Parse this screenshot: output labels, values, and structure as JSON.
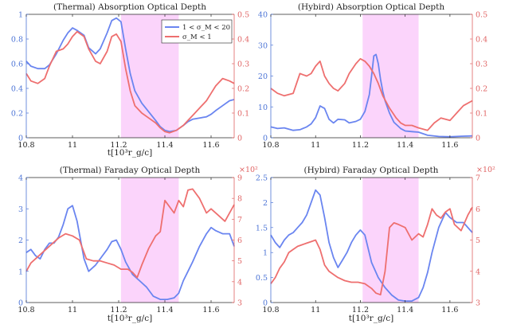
{
  "colors": {
    "left": "#4c74d6",
    "right": "#e06363",
    "band": "#fbd4fb",
    "blueLine": "#6a85f0",
    "redLine": "#ee6f6f"
  },
  "legend": {
    "series1": "1 < σ_M < 20",
    "series2": "σ_M < 1"
  },
  "chart_data": [
    {
      "type": "line",
      "title": "(Thermal) Absorption Optical Depth",
      "xlabel": "t[10³r_g/c]",
      "xlim": [
        10.8,
        11.7
      ],
      "xticks": [
        "10.8",
        "11",
        "11.2",
        "11.4",
        "11.6"
      ],
      "yleft": {
        "lim": [
          0,
          1
        ],
        "ticks": [
          "0",
          "0.2",
          "0.4",
          "0.6",
          "0.8",
          "1"
        ]
      },
      "yright": {
        "lim": [
          0,
          0.5
        ],
        "ticks": [
          "0",
          "0.1",
          "0.2",
          "0.3",
          "0.4",
          "0.5"
        ],
        "multiplier": ""
      },
      "shaded_x": [
        11.21,
        11.46
      ],
      "series": [
        {
          "name": "1 < σ_M < 20",
          "axis": "left",
          "x": [
            10.8,
            10.82,
            10.85,
            10.88,
            10.9,
            10.93,
            10.96,
            10.98,
            11,
            11.02,
            11.05,
            11.07,
            11.1,
            11.12,
            11.15,
            11.17,
            11.19,
            11.21,
            11.23,
            11.25,
            11.27,
            11.3,
            11.33,
            11.36,
            11.38,
            11.4,
            11.42,
            11.45,
            11.48,
            11.5,
            11.52,
            11.55,
            11.58,
            11.6,
            11.62,
            11.65,
            11.68,
            11.7
          ],
          "values": [
            0.62,
            0.58,
            0.56,
            0.56,
            0.59,
            0.68,
            0.79,
            0.85,
            0.89,
            0.87,
            0.83,
            0.73,
            0.68,
            0.72,
            0.85,
            0.95,
            0.97,
            0.94,
            0.72,
            0.52,
            0.38,
            0.28,
            0.21,
            0.14,
            0.09,
            0.06,
            0.05,
            0.06,
            0.1,
            0.13,
            0.15,
            0.16,
            0.17,
            0.19,
            0.22,
            0.26,
            0.3,
            0.31
          ]
        },
        {
          "name": "σ_M < 1",
          "axis": "right",
          "x": [
            10.8,
            10.82,
            10.85,
            10.88,
            10.9,
            10.93,
            10.96,
            10.98,
            11,
            11.02,
            11.05,
            11.07,
            11.1,
            11.12,
            11.15,
            11.17,
            11.19,
            11.21,
            11.23,
            11.25,
            11.27,
            11.3,
            11.33,
            11.36,
            11.38,
            11.4,
            11.42,
            11.45,
            11.48,
            11.5,
            11.52,
            11.55,
            11.58,
            11.6,
            11.62,
            11.65,
            11.68,
            11.7
          ],
          "values": [
            0.26,
            0.23,
            0.22,
            0.24,
            0.29,
            0.35,
            0.36,
            0.38,
            0.41,
            0.43,
            0.41,
            0.36,
            0.31,
            0.3,
            0.35,
            0.41,
            0.42,
            0.39,
            0.28,
            0.19,
            0.13,
            0.1,
            0.08,
            0.06,
            0.04,
            0.025,
            0.02,
            0.03,
            0.05,
            0.07,
            0.09,
            0.12,
            0.15,
            0.18,
            0.21,
            0.24,
            0.23,
            0.22
          ]
        }
      ]
    },
    {
      "type": "line",
      "title": "(Hybird) Absorption Optical Depth",
      "xlabel": "t[10³r_g/c]",
      "xlim": [
        10.8,
        11.7
      ],
      "xticks": [
        "10.8",
        "11",
        "11.2",
        "11.4",
        "11.6"
      ],
      "yleft": {
        "lim": [
          0,
          40
        ],
        "ticks": [
          "0",
          "10",
          "20",
          "30",
          "40"
        ]
      },
      "yright": {
        "lim": [
          0,
          0.5
        ],
        "ticks": [
          "0",
          "0.1",
          "0.2",
          "0.3",
          "0.4",
          "0.5"
        ],
        "multiplier": ""
      },
      "shaded_x": [
        11.21,
        11.46
      ],
      "series": [
        {
          "name": "1 < σ_M < 20",
          "axis": "left",
          "x": [
            10.8,
            10.83,
            10.86,
            10.9,
            10.93,
            10.96,
            10.98,
            11,
            11.02,
            11.04,
            11.06,
            11.08,
            11.1,
            11.13,
            11.15,
            11.18,
            11.2,
            11.22,
            11.24,
            11.25,
            11.26,
            11.27,
            11.28,
            11.29,
            11.3,
            11.31,
            11.33,
            11.35,
            11.38,
            11.4,
            11.43,
            11.46,
            11.5,
            11.55,
            11.6,
            11.65,
            11.7
          ],
          "values": [
            3.5,
            3.0,
            3.2,
            2.4,
            2.6,
            3.5,
            4.5,
            6.5,
            10.3,
            9.5,
            6,
            4.8,
            6,
            5.8,
            4.8,
            5.3,
            6,
            8.5,
            14,
            20,
            26.5,
            27,
            24,
            19,
            15,
            12,
            8,
            5,
            3,
            2.2,
            2,
            1.8,
            0.8,
            0.4,
            0.3,
            0.5,
            0.6
          ]
        },
        {
          "name": "σ_M < 1",
          "axis": "right",
          "x": [
            10.8,
            10.83,
            10.86,
            10.9,
            10.93,
            10.96,
            10.98,
            11,
            11.02,
            11.04,
            11.06,
            11.08,
            11.1,
            11.13,
            11.15,
            11.18,
            11.2,
            11.22,
            11.24,
            11.26,
            11.28,
            11.3,
            11.33,
            11.36,
            11.38,
            11.4,
            11.43,
            11.46,
            11.5,
            11.53,
            11.56,
            11.6,
            11.63,
            11.66,
            11.7
          ],
          "values": [
            0.2,
            0.18,
            0.17,
            0.18,
            0.26,
            0.25,
            0.26,
            0.29,
            0.31,
            0.25,
            0.22,
            0.2,
            0.19,
            0.22,
            0.26,
            0.3,
            0.32,
            0.31,
            0.29,
            0.26,
            0.22,
            0.17,
            0.12,
            0.08,
            0.06,
            0.05,
            0.05,
            0.04,
            0.03,
            0.06,
            0.08,
            0.07,
            0.1,
            0.13,
            0.15
          ]
        }
      ]
    },
    {
      "type": "line",
      "title": "(Thermal) Faraday Optical Depth",
      "xlabel": "t[10³r_g/c]",
      "xlim": [
        10.8,
        11.7
      ],
      "xticks": [
        "10.8",
        "11",
        "11.2",
        "11.4",
        "11.6"
      ],
      "yleft": {
        "lim": [
          0,
          4
        ],
        "ticks": [
          "0",
          "1",
          "2",
          "3",
          "4"
        ]
      },
      "yright": {
        "lim": [
          3,
          9
        ],
        "ticks": [
          "3",
          "4",
          "5",
          "6",
          "7",
          "8",
          "9"
        ],
        "multiplier": "×10²"
      },
      "shaded_x": [
        11.21,
        11.46
      ],
      "series": [
        {
          "name": "1 < σ_M < 20",
          "axis": "left",
          "x": [
            10.8,
            10.82,
            10.84,
            10.86,
            10.88,
            10.9,
            10.92,
            10.94,
            10.96,
            10.98,
            11,
            11.02,
            11.05,
            11.07,
            11.1,
            11.13,
            11.15,
            11.17,
            11.19,
            11.21,
            11.23,
            11.26,
            11.29,
            11.32,
            11.35,
            11.38,
            11.41,
            11.44,
            11.46,
            11.48,
            11.5,
            11.52,
            11.55,
            11.58,
            11.6,
            11.62,
            11.65,
            11.68,
            11.7
          ],
          "values": [
            1.6,
            1.7,
            1.5,
            1.4,
            1.7,
            1.9,
            1.9,
            2.1,
            2.5,
            3.0,
            3.1,
            2.6,
            1.4,
            1.0,
            1.2,
            1.5,
            1.7,
            1.95,
            2.0,
            1.7,
            1.3,
            0.9,
            0.7,
            0.5,
            0.2,
            0.1,
            0.1,
            0.15,
            0.3,
            0.7,
            1.0,
            1.3,
            1.8,
            2.2,
            2.4,
            2.3,
            2.2,
            2.2,
            1.8
          ]
        },
        {
          "name": "σ_M < 1",
          "axis": "right",
          "x": [
            10.8,
            10.82,
            10.85,
            10.88,
            10.91,
            10.94,
            10.97,
            11,
            11.03,
            11.06,
            11.09,
            11.12,
            11.15,
            11.18,
            11.21,
            11.24,
            11.26,
            11.28,
            11.3,
            11.33,
            11.36,
            11.38,
            11.4,
            11.42,
            11.44,
            11.46,
            11.48,
            11.5,
            11.52,
            11.55,
            11.58,
            11.6,
            11.63,
            11.66,
            11.7
          ],
          "values": [
            4.5,
            4.9,
            5.2,
            5.5,
            5.8,
            6.1,
            6.3,
            6.2,
            6.0,
            5.1,
            5.0,
            5.0,
            4.9,
            4.8,
            4.6,
            4.6,
            4.45,
            4.2,
            4.8,
            5.6,
            6.2,
            6.4,
            7.9,
            7.6,
            7.3,
            7.9,
            7.6,
            8.4,
            8.45,
            8.0,
            7.3,
            7.5,
            7.2,
            6.9,
            7.7
          ]
        }
      ]
    },
    {
      "type": "line",
      "title": "(Hybird) Faraday Optical Depth",
      "xlabel": "t[10³r_g/c]",
      "xlim": [
        10.8,
        11.7
      ],
      "xticks": [
        "10.8",
        "11",
        "11.2",
        "11.4",
        "11.6"
      ],
      "yleft": {
        "lim": [
          0,
          2.5
        ],
        "ticks": [
          "0",
          "0.5",
          "1",
          "1.5",
          "2",
          "2.5"
        ]
      },
      "yright": {
        "lim": [
          3,
          7
        ],
        "ticks": [
          "3",
          "4",
          "5",
          "6",
          "7"
        ],
        "multiplier": "×10²"
      },
      "shaded_x": [
        11.21,
        11.46
      ],
      "series": [
        {
          "name": "1 < σ_M < 20",
          "axis": "left",
          "x": [
            10.8,
            10.82,
            10.84,
            10.86,
            10.88,
            10.9,
            10.92,
            10.94,
            10.96,
            10.98,
            11,
            11.02,
            11.04,
            11.06,
            11.08,
            11.1,
            11.12,
            11.14,
            11.16,
            11.18,
            11.2,
            11.22,
            11.25,
            11.28,
            11.31,
            11.34,
            11.37,
            11.4,
            11.43,
            11.46,
            11.48,
            11.5,
            11.52,
            11.55,
            11.58,
            11.6,
            11.63,
            11.66,
            11.7
          ],
          "values": [
            1.35,
            1.2,
            1.1,
            1.25,
            1.35,
            1.4,
            1.5,
            1.6,
            1.75,
            2.0,
            2.25,
            2.15,
            1.7,
            1.2,
            0.9,
            0.7,
            0.85,
            1.0,
            1.2,
            1.35,
            1.45,
            1.35,
            0.8,
            0.5,
            0.3,
            0.15,
            0.05,
            0.03,
            0.03,
            0.1,
            0.3,
            0.6,
            1.0,
            1.5,
            1.8,
            1.7,
            1.6,
            1.6,
            1.4
          ]
        },
        {
          "name": "σ_M < 1",
          "axis": "right",
          "x": [
            10.8,
            10.82,
            10.84,
            10.86,
            10.88,
            10.9,
            10.92,
            10.94,
            10.96,
            10.98,
            11,
            11.02,
            11.04,
            11.06,
            11.08,
            11.1,
            11.13,
            11.16,
            11.19,
            11.22,
            11.25,
            11.27,
            11.29,
            11.31,
            11.33,
            11.35,
            11.37,
            11.4,
            11.43,
            11.46,
            11.48,
            11.5,
            11.52,
            11.54,
            11.56,
            11.58,
            11.6,
            11.62,
            11.65,
            11.68,
            11.7
          ],
          "values": [
            3.6,
            3.8,
            4.1,
            4.3,
            4.6,
            4.7,
            4.8,
            4.85,
            4.9,
            4.95,
            5.0,
            4.7,
            4.2,
            4.0,
            3.9,
            3.8,
            3.7,
            3.65,
            3.65,
            3.6,
            3.45,
            3.3,
            3.25,
            4.0,
            5.4,
            5.55,
            5.5,
            5.4,
            5.0,
            5.2,
            5.1,
            5.5,
            6.0,
            5.8,
            5.7,
            5.9,
            6.0,
            5.5,
            5.3,
            5.8,
            6.05
          ]
        }
      ]
    }
  ]
}
